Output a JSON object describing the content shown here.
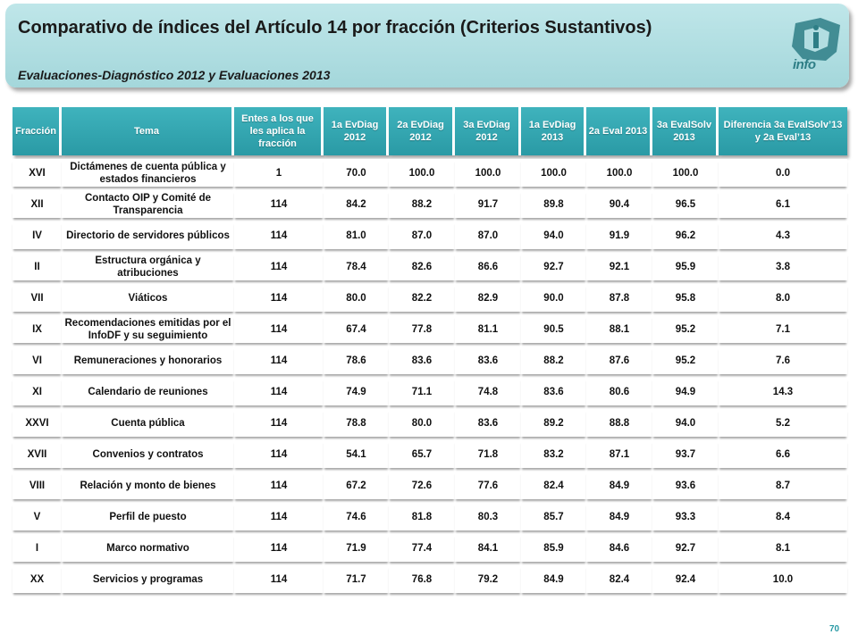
{
  "header": {
    "title": "Comparativo de índices del Artículo 14 por fracción (Criterios Sustantivos)",
    "subtitle": "Evaluaciones-Diagnóstico  2012 y Evaluaciones 2013",
    "logo_text": "info"
  },
  "table": {
    "headers": [
      "Fracción",
      "Tema",
      "Entes a los que les aplica la fracción",
      "1a EvDiag 2012",
      "2a EvDiag 2012",
      "3a EvDiag 2012",
      "1a EvDiag 2013",
      "2a Eval 2013",
      "3a EvalSolv 2013",
      "Diferencia 3a EvalSolv’13  y 2a Eval’13"
    ],
    "rows": [
      [
        "XVI",
        "Dictámenes de cuenta pública y estados financieros",
        "1",
        "70.0",
        "100.0",
        "100.0",
        "100.0",
        "100.0",
        "100.0",
        "0.0"
      ],
      [
        "XII",
        "Contacto OIP y Comité de Transparencia",
        "114",
        "84.2",
        "88.2",
        "91.7",
        "89.8",
        "90.4",
        "96.5",
        "6.1"
      ],
      [
        "IV",
        "Directorio de servidores públicos",
        "114",
        "81.0",
        "87.0",
        "87.0",
        "94.0",
        "91.9",
        "96.2",
        "4.3"
      ],
      [
        "II",
        "Estructura orgánica y atribuciones",
        "114",
        "78.4",
        "82.6",
        "86.6",
        "92.7",
        "92.1",
        "95.9",
        "3.8"
      ],
      [
        "VII",
        "Viáticos",
        "114",
        "80.0",
        "82.2",
        "82.9",
        "90.0",
        "87.8",
        "95.8",
        "8.0"
      ],
      [
        "IX",
        "Recomendaciones emitidas por el InfoDF y su seguimiento",
        "114",
        "67.4",
        "77.8",
        "81.1",
        "90.5",
        "88.1",
        "95.2",
        "7.1"
      ],
      [
        "VI",
        "Remuneraciones y honorarios",
        "114",
        "78.6",
        "83.6",
        "83.6",
        "88.2",
        "87.6",
        "95.2",
        "7.6"
      ],
      [
        "XI",
        "Calendario de reuniones",
        "114",
        "74.9",
        "71.1",
        "74.8",
        "83.6",
        "80.6",
        "94.9",
        "14.3"
      ],
      [
        "XXVI",
        "Cuenta pública",
        "114",
        "78.8",
        "80.0",
        "83.6",
        "89.2",
        "88.8",
        "94.0",
        "5.2"
      ],
      [
        "XVII",
        "Convenios y contratos",
        "114",
        "54.1",
        "65.7",
        "71.8",
        "83.2",
        "87.1",
        "93.7",
        "6.6"
      ],
      [
        "VIII",
        "Relación  y monto de bienes",
        "114",
        "67.2",
        "72.6",
        "77.6",
        "82.4",
        "84.9",
        "93.6",
        "8.7"
      ],
      [
        "V",
        "Perfil de puesto",
        "114",
        "74.6",
        "81.8",
        "80.3",
        "85.7",
        "84.9",
        "93.3",
        "8.4"
      ],
      [
        "I",
        "Marco normativo",
        "114",
        "71.9",
        "77.4",
        "84.1",
        "85.9",
        "84.6",
        "92.7",
        "8.1"
      ],
      [
        "XX",
        "Servicios  y programas",
        "114",
        "71.7",
        "76.8",
        "79.2",
        "84.9",
        "82.4",
        "92.4",
        "10.0"
      ]
    ]
  },
  "footer": {
    "page_number": "70"
  }
}
